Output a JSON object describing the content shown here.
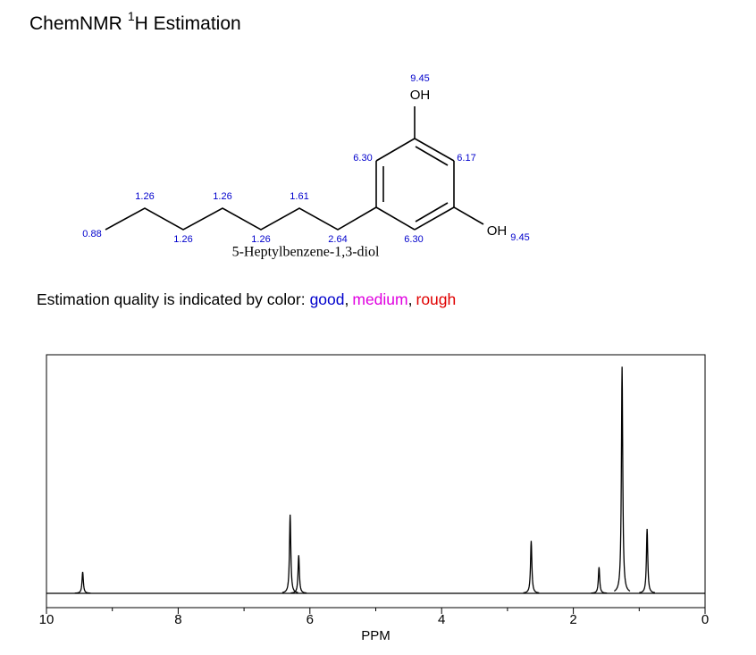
{
  "header": {
    "title_prefix": "ChemNMR",
    "superscript": "1",
    "title_suffix": "H Estimation"
  },
  "molecule": {
    "name": "5-Heptylbenzene-1,3-diol",
    "groups": [
      "OH",
      "OH"
    ],
    "shifts": [
      "9.45",
      "6.30",
      "6.17",
      "6.30",
      "9.45",
      "2.64",
      "1.61",
      "1.26",
      "1.26",
      "1.26",
      "1.26",
      "0.88"
    ]
  },
  "quality_note": {
    "text": "Estimation quality is indicated by color:",
    "separator": ",",
    "levels": [
      {
        "label": "good",
        "color": "#0000cc"
      },
      {
        "label": "medium",
        "color": "#e000e0"
      },
      {
        "label": "rough",
        "color": "#e00000"
      }
    ]
  },
  "chart_data": {
    "type": "spectrum",
    "xlabel": "PPM",
    "x": [
      9.45,
      6.3,
      6.17,
      2.64,
      1.61,
      1.26,
      0.88
    ],
    "values": [
      0.09,
      0.33,
      0.16,
      0.22,
      0.11,
      0.95,
      0.27
    ],
    "color": "#000000",
    "xlim": [
      10,
      0
    ],
    "ylim": [
      0,
      1
    ],
    "xticks": [
      10,
      8,
      6,
      4,
      2,
      0
    ],
    "xminorticks": [
      9,
      7,
      5,
      3,
      1
    ]
  }
}
